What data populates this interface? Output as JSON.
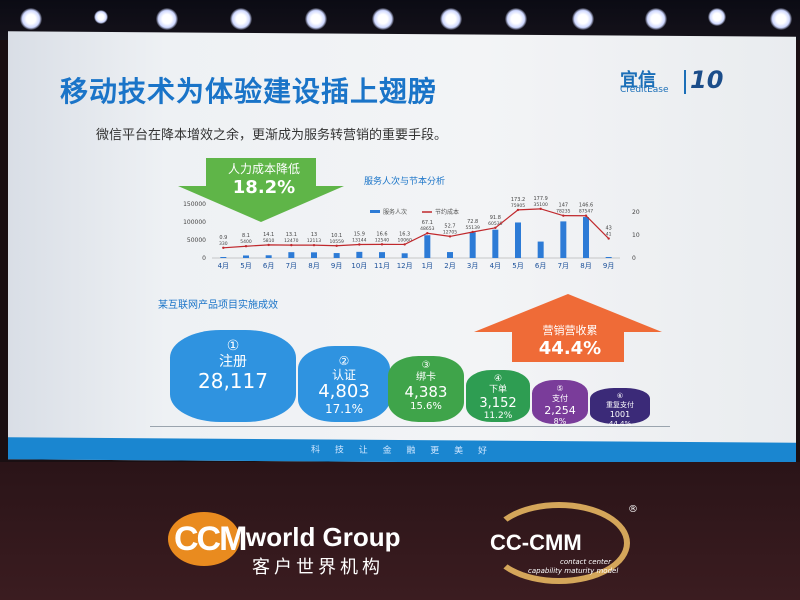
{
  "slide": {
    "title": "移动技术为体验建设插上翅膀",
    "subtitle": "微信平台在降本增效之余，更渐成为服务转营销的重要手段。",
    "section_title": "某互联网产品项目实施成效",
    "footer_text": "科 技 让 金 融 更 美 好"
  },
  "logo": {
    "name": "宜信",
    "sub": "CreditEase",
    "ten": "10"
  },
  "banners": {
    "cost": {
      "label": "人力成本降低",
      "value": "18.2%"
    },
    "marketing": {
      "label": "营销营收累",
      "value": "44.4%"
    }
  },
  "chart_data": {
    "type": "bar",
    "title": "服务人次与节本分析",
    "categories": [
      "4月",
      "5月",
      "6月",
      "7月",
      "8月",
      "9月",
      "10月",
      "11月",
      "12月",
      "1月",
      "2月",
      "3月",
      "4月",
      "5月",
      "6月",
      "7月",
      "8月",
      "9月"
    ],
    "series": [
      {
        "name": "服务人次",
        "values": [
          330,
          5400,
          5810,
          12470,
          12113,
          10559,
          13144,
          12540,
          10060,
          48653,
          12705,
          55139,
          60530,
          75905,
          35100,
          78235,
          87547,
          41
        ]
      },
      {
        "name": "节约成本",
        "values": [
          0.9,
          8.1,
          14.1,
          13.1,
          13,
          10.1,
          15.9,
          16.6,
          16.3,
          67.1,
          52.7,
          72.8,
          91.8,
          173.2,
          177.9,
          147,
          146.6,
          43
        ]
      }
    ],
    "line_labels": [
      "0.9",
      "8.1",
      "14.1",
      "13.1",
      "13",
      "10.1",
      "15.9",
      "16.6",
      "16.3",
      "67.1",
      "52.7",
      "72.8",
      "91.8",
      "173.2",
      "177.9",
      "147",
      "146.6",
      "43"
    ],
    "bar_labels": [
      "330",
      "5400",
      "5810",
      "12470",
      "12113",
      "10559",
      "13144",
      "12540",
      "10060",
      "48653",
      "12705",
      "55139",
      "60530",
      "75905",
      "35100",
      "78235",
      "87547",
      "41"
    ],
    "y_left_ticks": [
      "150000",
      "100000",
      "50000",
      "0"
    ],
    "y_right_ticks": [
      "200",
      "100",
      "0"
    ],
    "colors": {
      "bar": "#2d7bd6",
      "line": "#c0282c"
    }
  },
  "funnel": [
    {
      "num": "①",
      "label": "注册",
      "value": "28,117",
      "pct": "",
      "color": "#2f93e0"
    },
    {
      "num": "②",
      "label": "认证",
      "value": "4,803",
      "pct": "17.1%",
      "color": "#2f93e0"
    },
    {
      "num": "③",
      "label": "绑卡",
      "value": "4,383",
      "pct": "15.6%",
      "color": "#3fa44a"
    },
    {
      "num": "④",
      "label": "下单",
      "value": "3,152",
      "pct": "11.2%",
      "color": "#2e9d52"
    },
    {
      "num": "⑤",
      "label": "支付",
      "value": "2,254",
      "pct": "8%",
      "color": "#7a3c9a"
    },
    {
      "num": "⑥",
      "label": "重复支付",
      "value": "1001",
      "pct": "44.4%",
      "color": "#3b2a78"
    }
  ],
  "bottom": {
    "ccm": "CCM",
    "world_group": "world Group",
    "world_group_cn": "客户世界机构",
    "cmm": "CC-CMM",
    "cmm_sub1": "contact center",
    "cmm_sub2": "capability maturity model",
    "reg": "®"
  }
}
